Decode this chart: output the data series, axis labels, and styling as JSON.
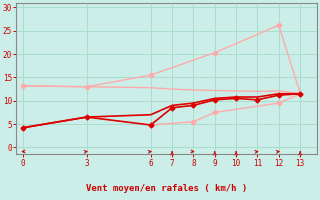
{
  "xlabel": "Vent moyen/en rafales ( km/h )",
  "bg_color": "#cceee8",
  "grid_color": "#aaddcc",
  "text_color": "#cc0000",
  "axis_color": "#888888",
  "xlim": [
    -0.3,
    13.8
  ],
  "ylim": [
    -1.5,
    31
  ],
  "yticks": [
    0,
    5,
    10,
    15,
    20,
    25,
    30
  ],
  "xticks": [
    0,
    3,
    6,
    7,
    8,
    9,
    10,
    11,
    12,
    13
  ],
  "line_configs": [
    {
      "x": [
        0,
        3,
        6,
        7,
        8,
        9,
        10,
        11,
        12,
        13
      ],
      "y": [
        13.2,
        13.0,
        12.8,
        12.5,
        12.3,
        12.2,
        12.1,
        12.0,
        12.1,
        11.6
      ],
      "color": "#ffaaaa",
      "lw": 1.0,
      "marker": null,
      "ms": 2.5
    },
    {
      "x": [
        0,
        3,
        6,
        9,
        12
      ],
      "y": [
        13.2,
        13.0,
        15.5,
        20.3,
        26.2
      ],
      "color": "#ffaaaa",
      "lw": 1.0,
      "marker": "D",
      "ms": 2.5
    },
    {
      "x": [
        6,
        8,
        9,
        12,
        13
      ],
      "y": [
        4.8,
        5.5,
        7.5,
        9.5,
        11.5
      ],
      "color": "#ffaaaa",
      "lw": 1.0,
      "marker": "D",
      "ms": 2.5
    },
    {
      "x": [
        12,
        13
      ],
      "y": [
        26.2,
        11.6
      ],
      "color": "#ffaaaa",
      "lw": 1.0,
      "marker": null,
      "ms": 2.5
    },
    {
      "x": [
        0,
        3,
        6,
        7,
        8,
        9,
        10,
        11,
        12,
        13
      ],
      "y": [
        4.2,
        6.5,
        4.8,
        8.5,
        9.0,
        10.2,
        10.5,
        10.2,
        11.2,
        11.5
      ],
      "color": "#dd0000",
      "lw": 1.2,
      "marker": "D",
      "ms": 2.5
    },
    {
      "x": [
        0,
        3,
        6,
        7,
        8,
        9,
        10,
        11,
        12,
        13
      ],
      "y": [
        4.2,
        6.5,
        7.0,
        9.0,
        9.5,
        10.5,
        10.8,
        10.8,
        11.5,
        11.5
      ],
      "color": "#dd0000",
      "lw": 1.2,
      "marker": null,
      "ms": 2.5
    }
  ],
  "wind_arrows_x": [
    0,
    3,
    6,
    7,
    8,
    9,
    10,
    11,
    12,
    13
  ],
  "wind_arrows_angles_deg": [
    225,
    45,
    45,
    0,
    135,
    0,
    0,
    45,
    45,
    0
  ]
}
